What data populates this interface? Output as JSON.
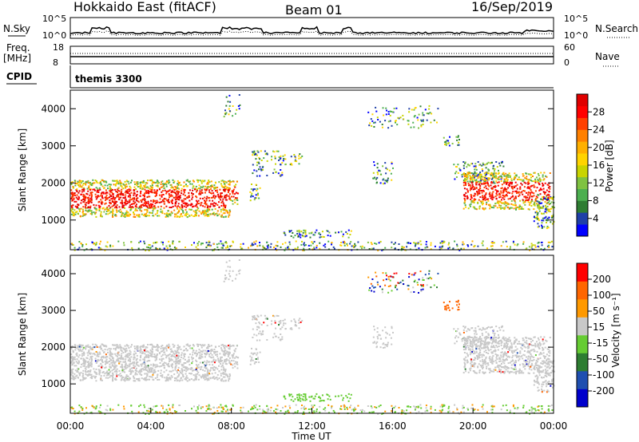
{
  "header": {
    "station": "Hokkaido East (fitACF)",
    "beam": "Beam 01",
    "date": "16/Sep/2019"
  },
  "top_panels": {
    "nsky_label": "N.Sky",
    "nsky_ticks": [
      "10^5",
      "10^0"
    ],
    "nsearch_label": "N.Search",
    "nsearch_ticks": [
      "10^5",
      "10^0"
    ],
    "freq_label": "Freq.",
    "freq_unit": "[MHz]",
    "freq_ticks": [
      "18",
      "8"
    ],
    "nave_label": "Nave",
    "nave_ticks": [
      "60",
      "0"
    ],
    "cpid_label": "CPID",
    "cpid_value": "themis 3300"
  },
  "chart_data": [
    {
      "type": "heatmap",
      "name": "power",
      "ylabel": "Slant Range [km]",
      "yticks": [
        "4000",
        "3000",
        "2000",
        "1000"
      ],
      "ylim": [
        200,
        4500
      ],
      "xlim": [
        "00:00",
        "24:00"
      ],
      "colorbar": {
        "label": "Power [dB]",
        "ticks": [
          "28",
          "24",
          "20",
          "16",
          "12",
          "8",
          "4"
        ],
        "colors": [
          "#0000ff",
          "#1f3fa8",
          "#2e7d32",
          "#4caf50",
          "#7fc241",
          "#c9d400",
          "#ffd400",
          "#ffb000",
          "#ff8000",
          "#ff4000",
          "#ff0000",
          "#e00000"
        ]
      }
    },
    {
      "type": "heatmap",
      "name": "velocity",
      "ylabel": "Slant Range [km]",
      "yticks": [
        "4000",
        "3000",
        "2000",
        "1000"
      ],
      "ylim": [
        200,
        4500
      ],
      "xlim": [
        "00:00",
        "24:00"
      ],
      "xticks": [
        "00:00",
        "04:00",
        "08:00",
        "12:00",
        "16:00",
        "20:00",
        "00:00"
      ],
      "xlabel": "Time UT",
      "colorbar": {
        "label": "Velocity [m s⁻¹]",
        "ticks": [
          "200",
          "100",
          "50",
          "15",
          "-15",
          "-50",
          "-100",
          "-200"
        ],
        "colors": [
          "#0000cc",
          "#1f4fb0",
          "#2e7d32",
          "#66cc33",
          "#c8c8c8",
          "#ff9900",
          "#ff6600",
          "#ff0000"
        ]
      }
    }
  ],
  "colors": {
    "scatter_gray": "#c8c8c8",
    "frame": "#000000"
  }
}
